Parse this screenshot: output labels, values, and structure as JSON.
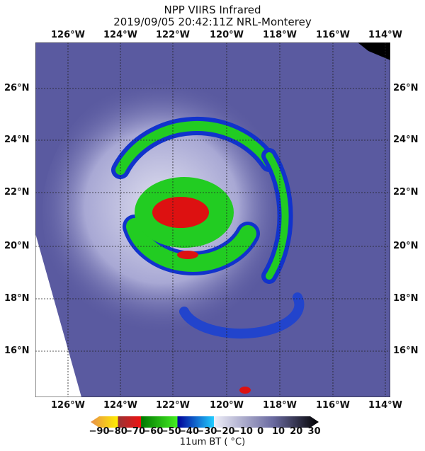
{
  "title": {
    "line1": "NPP VIIRS Infrared",
    "line2": "2019/09/05 20:42:11Z NRL-Monterey"
  },
  "lon_labels": [
    "126°W",
    "124°W",
    "122°W",
    "120°W",
    "118°W",
    "116°W",
    "114°W"
  ],
  "lat_labels": [
    "26°N",
    "24°N",
    "22°N",
    "20°N",
    "18°N",
    "16°N"
  ],
  "colorbar": {
    "ticks": [
      "−90",
      "−80",
      "−70",
      "−60",
      "−50",
      "−40",
      "−30",
      "−20",
      "−10",
      "0",
      "10",
      "20",
      "30"
    ],
    "label": "11um BT ( °C)",
    "range": [
      -90,
      30
    ],
    "colors": {
      "warm_cloudfree": "#5a5aa0",
      "cold_green": "#22cc22",
      "coldest_red": "#dd1111",
      "blue": "#1133cc"
    }
  }
}
